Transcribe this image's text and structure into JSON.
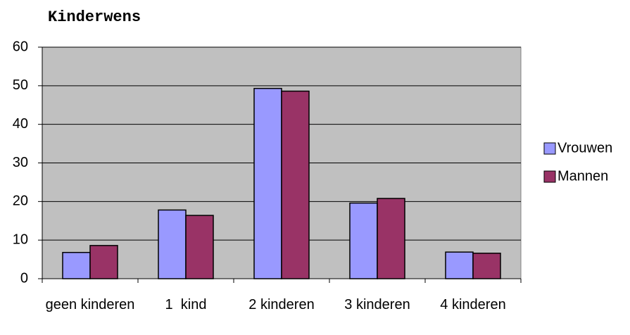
{
  "chart_data": {
    "type": "bar",
    "title": "Kinderwens",
    "categories": [
      "geen kinderen",
      "1  kind",
      "2 kinderen",
      "3 kinderen",
      "4 kinderen"
    ],
    "series": [
      {
        "name": "Vrouwen",
        "color": "#9999ff",
        "values": [
          6.8,
          17.8,
          49.3,
          19.6,
          6.9
        ]
      },
      {
        "name": "Mannen",
        "color": "#993366",
        "values": [
          8.6,
          16.4,
          48.6,
          20.8,
          6.6
        ]
      }
    ],
    "ylim": [
      0,
      60
    ],
    "yticks": [
      0,
      10,
      20,
      30,
      40,
      50,
      60
    ],
    "grid": true,
    "legend": "right"
  }
}
